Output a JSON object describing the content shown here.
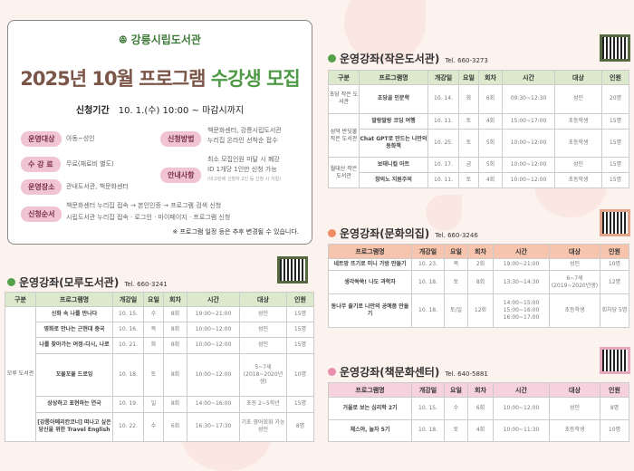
{
  "header": {
    "logo_text": "강릉시립도서관",
    "title_main": "2025년 10월 프로그램",
    "title_accent": "수강생 모집",
    "period_label": "신청기간",
    "period_value": "10. 1.(수) 10:00 ~ 마감시까지"
  },
  "info": {
    "target_label": "운영대상",
    "target_value": "아동~성인",
    "fee_label": "수 강 료",
    "fee_value": "무료(재료비 별도)",
    "place_label": "운영장소",
    "place_value": "관내도서관, 책문화센터",
    "method_label": "신청방법",
    "method_lines": [
      "책문화센터, 강릉시립도서관",
      "누리집 온라인 선착순 접수"
    ],
    "notice_label": "안내사항",
    "notice_lines": [
      "최소 모집인원 미달 시 폐강",
      "ID 1개당 1인만 신청 가능",
      "(비고란에 신청자 2인 등 신청 시 거절)"
    ],
    "order_label": "신청순서",
    "order_lines": [
      "책문화센터 누리집 접속 → 본인인증 → 프로그램 검색 신청",
      "시립도서관 누리집 접속 · 로그인 · 마이페이지 · 프로그램 신청"
    ],
    "note": "※ 프로그램 일정 등은 추후 변경될 수 있습니다."
  },
  "colors": {
    "green_header": "#dce9cc",
    "green_border": "#55683f",
    "orange_header": "#f7c4ad",
    "orange_border": "#e2a58a",
    "pink_header": "#f6d2df",
    "pink_border": "#e6a9bf",
    "title_brown": "#7a5548",
    "title_green": "#4f9a46"
  },
  "sections": [
    {
      "title": "운영강좌(모루도서관)",
      "tel": "Tel. 660-3241",
      "headers": [
        "구분",
        "프로그램명",
        "개강일",
        "요일",
        "회차",
        "시간",
        "대상",
        "인원"
      ],
      "rows": [
        {
          "group": "모루 도서관",
          "span": 6,
          "cells": [
            "신화 속 나를 만나다",
            "10. 15.",
            "수",
            "8회",
            "19:00~21:00",
            "성인",
            "15명"
          ]
        },
        {
          "cells": [
            "영화로 만나는 근현대 중국",
            "10. 16.",
            "목",
            "8회",
            "10:00~12:00",
            "성인",
            "15명"
          ]
        },
        {
          "cells": [
            "나를 찾아가는 여정-다시, 나로",
            "10. 21.",
            "화",
            "8회",
            "10:00~12:00",
            "성인",
            "15명"
          ]
        },
        {
          "cells": [
            "꼬물꼬물 드로잉",
            "10. 18.",
            "토",
            "8회",
            "10:00~12:00",
            "5~7세 (2018~2020년생)",
            "10명"
          ]
        },
        {
          "cells": [
            "상상하고 표현하는 연극",
            "10. 19.",
            "일",
            "8회",
            "14:00~16:00",
            "초등 2~5학년",
            "15명"
          ]
        },
        {
          "cells": [
            "[강릉아메리칸코너] 떠나고 싶은 당신을 위한 Travel English",
            "10. 22.",
            "수",
            "6회",
            "16:30~17:30",
            "기초 영어회화 가능 성인",
            "8명"
          ]
        }
      ]
    },
    {
      "title": "운영강좌(작은도서관)",
      "tel": "Tel. 660-3273",
      "headers": [
        "구분",
        "프로그램명",
        "개강일",
        "요일",
        "회차",
        "시간",
        "대상",
        "인원"
      ],
      "rows": [
        {
          "group": "초당 작은 도서관",
          "span": 1,
          "cells": [
            "초당골 인문학",
            "10. 14.",
            "화",
            "6회",
            "09:30~12:30",
            "성인",
            "20명"
          ]
        },
        {
          "group": "성덕 반딧불 작은 도서관",
          "span": 2,
          "cells": [
            "말랑말랑 코딩 여행",
            "10. 11.",
            "토",
            "4회",
            "15:00~17:00",
            "초등학생",
            "15명"
          ]
        },
        {
          "cells": [
            "Chat GPT로 만드는 나만의 동화책",
            "10. 25.",
            "토",
            "5회",
            "10:00~12:00",
            "초등학생",
            "15명"
          ]
        },
        {
          "group": "월대산 작은 도서관",
          "span": 2,
          "cells": [
            "보태니컬 아트",
            "10. 17.",
            "금",
            "5회",
            "10:00~12:00",
            "성인",
            "15명"
          ]
        },
        {
          "cells": [
            "창의노 지원주의",
            "10. 11.",
            "토",
            "4회",
            "10:00~12:00",
            "초등학생",
            "15명"
          ]
        }
      ]
    },
    {
      "title": "운영강좌(문화의집)",
      "tel": "Tel. 660-3246",
      "headers": [
        "프로그램명",
        "개강일",
        "요일",
        "회차",
        "시간",
        "대상",
        "인원"
      ],
      "rows": [
        {
          "cells": [
            "네트망 뜨기로 미니 가방 만들기",
            "10. 23.",
            "목",
            "2회",
            "19:00~21:00",
            "성인",
            "10명"
          ]
        },
        {
          "cells": [
            "생각쑥쑥! 나도 과학자",
            "10. 18.",
            "토",
            "8회",
            "13:30~14:30",
            "6~7세 (2019~2020년생)",
            "12명"
          ]
        },
        {
          "cells": [
            "동나무 줄기로 나만의 공예품 만들기",
            "10. 18.",
            "토/일",
            "12회",
            "14:00~15:00 15:00~16:00 16:00~17:00",
            "초등학생",
            "회차당 5명"
          ]
        }
      ]
    },
    {
      "title": "운영강좌(책문화센터)",
      "tel": "Tel. 640-5881",
      "headers": [
        "프로그램명",
        "개강일",
        "요일",
        "회차",
        "시간",
        "대상",
        "인원"
      ],
      "rows": [
        {
          "cells": [
            "거울로 보는 심리학 2기",
            "10. 15.",
            "수",
            "6회",
            "10:00~12:00",
            "성인",
            "8명"
          ]
        },
        {
          "cells": [
            "체스야, 놀자 5기",
            "10. 18.",
            "토",
            "4회",
            "10:00~11:30",
            "초등학생",
            "10명"
          ]
        }
      ]
    }
  ]
}
